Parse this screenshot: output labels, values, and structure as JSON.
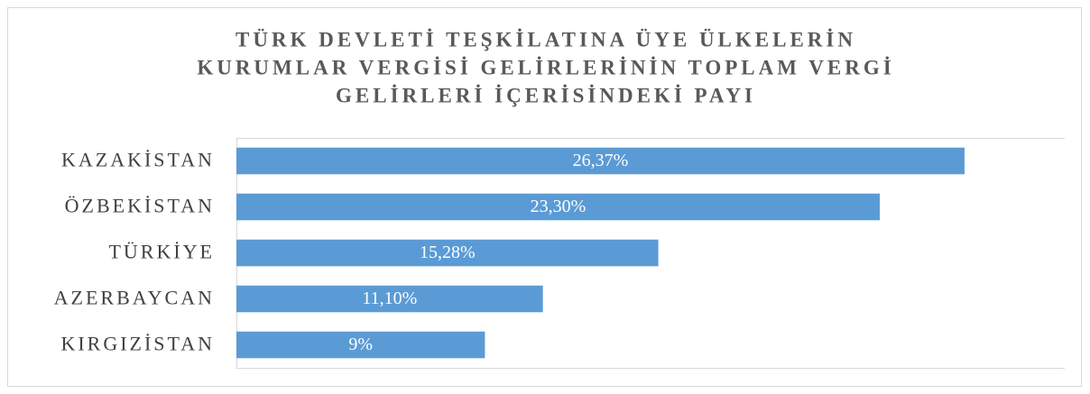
{
  "chart_data": {
    "type": "bar",
    "orientation": "horizontal",
    "title": [
      "TÜRK DEVLETİ TEŞKİLATINA ÜYE ÜLKELERİN",
      "KURUMLAR VERGİSİ GELİRLERİNİN TOPLAM VERGİ",
      "GELİRLERİ İÇERİSİNDEKİ PAYI"
    ],
    "categories": [
      "KAZAKİSTAN",
      "ÖZBEKİSTAN",
      "TÜRKİYE",
      "AZERBAYCAN",
      "KIRGIZİSTAN"
    ],
    "values": [
      26.37,
      23.3,
      15.28,
      11.1,
      9
    ],
    "value_labels": [
      "26,37%",
      "23,30%",
      "15,28%",
      "11,10%",
      "9%"
    ],
    "color": "#5b9bd5",
    "xlim": [
      0,
      30
    ]
  }
}
